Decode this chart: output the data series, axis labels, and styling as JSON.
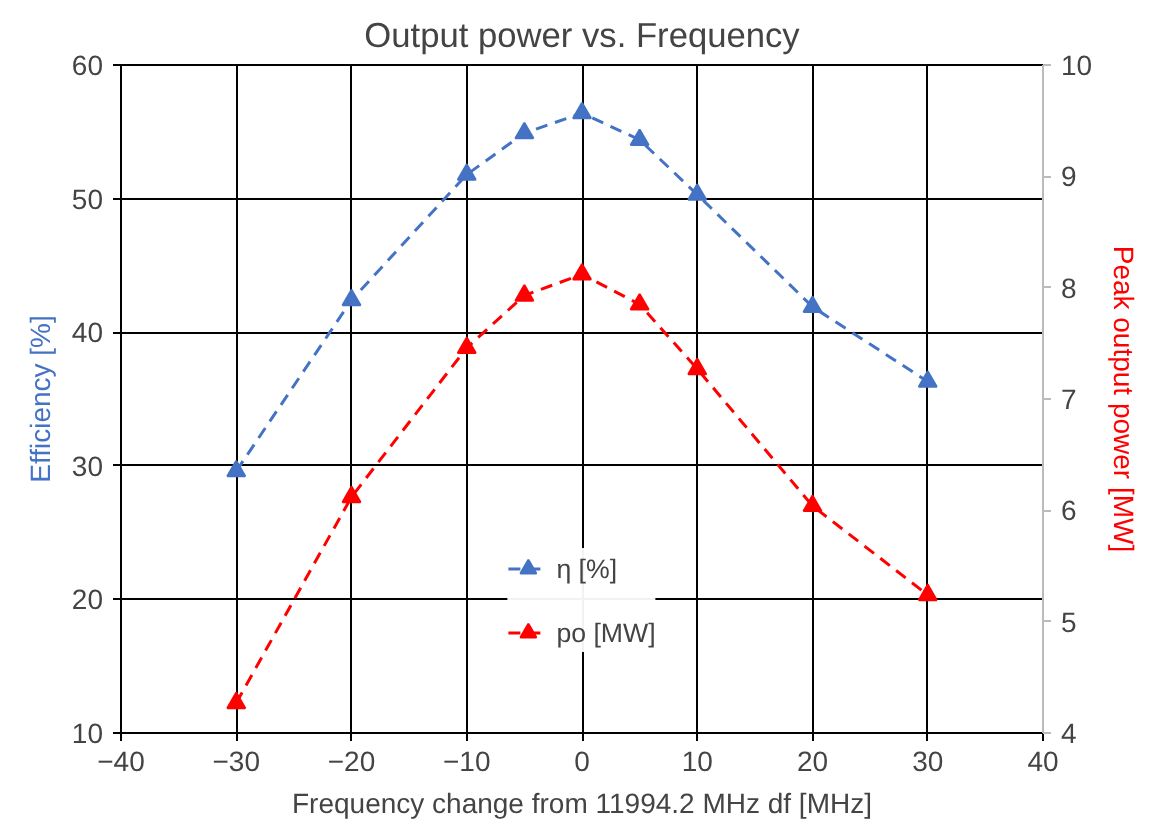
{
  "chart_data": {
    "type": "line",
    "title": "Output power vs. Frequency",
    "xlabel": "Frequency change from 11994.2 MHz df [MHz]",
    "ylabel": "Efficiency [%]",
    "y2label": "Peak output power [MW]",
    "x": [
      -30,
      -20,
      -10,
      -5,
      0,
      5,
      10,
      20,
      30
    ],
    "series": [
      {
        "name": "η [%]",
        "color": "#4472c4",
        "values": [
          29.6,
          42.4,
          51.8,
          54.9,
          56.4,
          54.4,
          50.3,
          41.9,
          36.3
        ]
      },
      {
        "name": "po [MW]",
        "color": "#ff0000",
        "axis": "y2",
        "values": [
          4.27,
          6.12,
          7.46,
          7.93,
          8.12,
          7.85,
          7.27,
          6.04,
          5.24
        ]
      }
    ],
    "xlim": [
      -40,
      40
    ],
    "xticks": [
      -40,
      -30,
      -20,
      -10,
      0,
      10,
      20,
      30,
      40
    ],
    "ylim": [
      10,
      60
    ],
    "yticks": [
      10,
      20,
      30,
      40,
      50,
      60
    ],
    "y2lim": [
      4,
      10
    ],
    "y2ticks": [
      4,
      5,
      6,
      7,
      8,
      9,
      10
    ],
    "grid": true,
    "legend": "bottom",
    "marker": "triangle",
    "line_style": "dashed"
  }
}
